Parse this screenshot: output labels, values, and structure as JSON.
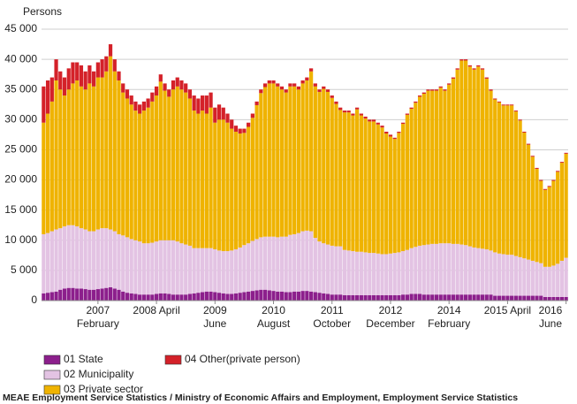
{
  "chart_data": {
    "type": "stacked_bar",
    "y_label": "Persons",
    "source": "MEAE Employment Service Statistics / Ministry of Economic Affairs and Employment, Employment Service Statistics",
    "categories": [
      null,
      null,
      null,
      null,
      null,
      null,
      null,
      null,
      null,
      null,
      null,
      null,
      null,
      [
        "2007",
        "February"
      ],
      null,
      null,
      null,
      null,
      null,
      null,
      null,
      null,
      null,
      null,
      null,
      null,
      null,
      "2008 April",
      null,
      null,
      null,
      null,
      null,
      null,
      null,
      null,
      null,
      null,
      null,
      null,
      null,
      [
        "2009",
        "June"
      ],
      null,
      null,
      null,
      null,
      null,
      null,
      null,
      null,
      null,
      null,
      null,
      null,
      null,
      [
        "2010",
        "August"
      ],
      null,
      null,
      null,
      null,
      null,
      null,
      null,
      null,
      null,
      null,
      null,
      null,
      null,
      [
        "2011",
        "October"
      ],
      null,
      null,
      null,
      null,
      null,
      null,
      null,
      null,
      null,
      null,
      null,
      null,
      null,
      [
        "2012",
        "December"
      ],
      null,
      null,
      null,
      null,
      null,
      null,
      null,
      null,
      null,
      null,
      null,
      null,
      null,
      [
        "2014",
        "February"
      ],
      null,
      null,
      null,
      null,
      null,
      null,
      null,
      null,
      null,
      null,
      null,
      null,
      null,
      "2015 April",
      null,
      null,
      null,
      null,
      null,
      null,
      null,
      null,
      null,
      null,
      null,
      null,
      null,
      [
        "2016",
        "June"
      ]
    ],
    "series": [
      {
        "name": "01 State",
        "color": "#8c1f8c",
        "values": [
          1200,
          1300,
          1400,
          1500,
          1800,
          2000,
          2100,
          2100,
          2000,
          2000,
          1900,
          1800,
          1800,
          1900,
          2000,
          2100,
          2200,
          2000,
          1800,
          1500,
          1300,
          1200,
          1100,
          1000,
          1000,
          1000,
          1000,
          1100,
          1200,
          1200,
          1100,
          1000,
          1000,
          1000,
          1000,
          1100,
          1200,
          1300,
          1400,
          1500,
          1500,
          1400,
          1300,
          1200,
          1100,
          1100,
          1200,
          1300,
          1400,
          1500,
          1600,
          1700,
          1800,
          1800,
          1700,
          1600,
          1500,
          1500,
          1400,
          1400,
          1500,
          1500,
          1600,
          1600,
          1500,
          1400,
          1300,
          1200,
          1100,
          1000,
          1000,
          1000,
          900,
          900,
          900,
          900,
          900,
          900,
          900,
          900,
          900,
          900,
          900,
          900,
          900,
          900,
          1000,
          1000,
          1100,
          1100,
          1100,
          1000,
          1000,
          1000,
          1000,
          1000,
          1000,
          1000,
          1000,
          1000,
          1000,
          1000,
          1000,
          1000,
          1000,
          1000,
          1000,
          1000,
          800,
          800,
          800,
          800,
          800,
          800,
          800,
          800,
          800,
          800,
          800,
          800,
          600,
          600,
          600,
          600,
          600,
          600
        ]
      },
      {
        "name": "02 Municipality",
        "color": "#e3c3e3",
        "values": [
          9800,
          9900,
          10100,
          10300,
          10200,
          10300,
          10400,
          10400,
          10300,
          10000,
          9900,
          9700,
          9700,
          9900,
          10000,
          9900,
          9600,
          9500,
          9200,
          9300,
          9200,
          9000,
          8900,
          8800,
          8500,
          8500,
          8600,
          8700,
          8800,
          8800,
          8900,
          9000,
          8800,
          8500,
          8300,
          8000,
          7500,
          7400,
          7300,
          7200,
          7200,
          7100,
          7000,
          7000,
          7100,
          7200,
          7300,
          7500,
          7800,
          8000,
          8300,
          8500,
          8700,
          8800,
          8900,
          9000,
          9000,
          9100,
          9200,
          9500,
          9500,
          9700,
          9900,
          10000,
          10000,
          9000,
          8500,
          8300,
          8200,
          8100,
          8000,
          8000,
          7500,
          7400,
          7300,
          7200,
          7200,
          7100,
          7000,
          7000,
          6900,
          6800,
          6800,
          6900,
          7000,
          7100,
          7200,
          7400,
          7600,
          7800,
          8000,
          8200,
          8300,
          8400,
          8400,
          8500,
          8500,
          8500,
          8400,
          8400,
          8300,
          8200,
          8000,
          7800,
          7700,
          7600,
          7500,
          7300,
          7200,
          7000,
          6900,
          6800,
          6800,
          6600,
          6400,
          6200,
          6000,
          5800,
          5600,
          5400,
          5000,
          5000,
          5200,
          5500,
          6000,
          6500
        ]
      },
      {
        "name": "03 Private sector",
        "color": "#efb300",
        "values": [
          18500,
          19800,
          21500,
          24700,
          23000,
          21700,
          22500,
          23500,
          24200,
          23500,
          23200,
          24500,
          24000,
          25200,
          25000,
          26000,
          28700,
          26500,
          25500,
          23700,
          23000,
          22300,
          21500,
          21200,
          22000,
          22500,
          23400,
          24200,
          26300,
          24800,
          23800,
          25000,
          25700,
          25500,
          25200,
          24400,
          22800,
          22300,
          22800,
          22300,
          23300,
          21000,
          21700,
          21800,
          21300,
          20200,
          19500,
          18900,
          18600,
          19300,
          20400,
          22200,
          23900,
          24800,
          25400,
          25400,
          25000,
          24400,
          23900,
          24600,
          24500,
          23800,
          24500,
          24900,
          26500,
          25100,
          24800,
          25600,
          25300,
          24500,
          23600,
          22600,
          22800,
          22900,
          22500,
          23600,
          22600,
          22200,
          21800,
          21800,
          21400,
          21000,
          20000,
          19400,
          18900,
          19800,
          21100,
          22400,
          23100,
          23900,
          24700,
          25100,
          25500,
          25400,
          25400,
          25800,
          25300,
          26300,
          27400,
          28900,
          30500,
          30600,
          29800,
          29500,
          30100,
          29700,
          28300,
          26500,
          25350,
          25050,
          24650,
          24750,
          24750,
          23950,
          22650,
          20850,
          19050,
          17250,
          15450,
          13650,
          12750,
          13250,
          14050,
          15250,
          16250,
          17250
        ]
      },
      {
        "name": "04 Other(private person)",
        "color": "#d42129",
        "values": [
          6000,
          5500,
          4000,
          3500,
          3000,
          3000,
          3500,
          3500,
          3000,
          3500,
          3000,
          3000,
          2500,
          2500,
          3000,
          2500,
          2000,
          2000,
          1500,
          1500,
          1500,
          1500,
          1500,
          1500,
          1500,
          1500,
          1500,
          1500,
          1200,
          1200,
          1200,
          1500,
          1500,
          1500,
          1500,
          1500,
          2500,
          2500,
          2500,
          3000,
          2500,
          2500,
          2500,
          2000,
          1500,
          1500,
          1000,
          800,
          700,
          700,
          700,
          600,
          600,
          600,
          500,
          500,
          500,
          500,
          500,
          500,
          500,
          500,
          500,
          500,
          500,
          500,
          400,
          400,
          400,
          400,
          400,
          400,
          300,
          300,
          300,
          300,
          300,
          300,
          300,
          300,
          300,
          300,
          300,
          300,
          200,
          200,
          200,
          200,
          200,
          200,
          200,
          200,
          200,
          200,
          200,
          200,
          200,
          200,
          200,
          200,
          200,
          200,
          200,
          200,
          200,
          200,
          200,
          200,
          150,
          150,
          150,
          150,
          150,
          150,
          150,
          150,
          150,
          150,
          150,
          150,
          150,
          150,
          150,
          150,
          150,
          150
        ]
      }
    ],
    "ylim": [
      0,
      45000
    ],
    "yticks": [
      0,
      {
        "value": 5000,
        "label": "5 000"
      },
      {
        "value": 10000,
        "label": "10 000"
      },
      {
        "value": 15000,
        "label": "15 000"
      },
      {
        "value": 20000,
        "label": "20 000"
      },
      {
        "value": 25000,
        "label": "25 000"
      },
      {
        "value": 30000,
        "label": "30 000"
      },
      {
        "value": 35000,
        "label": "35 000"
      },
      {
        "value": 40000,
        "label": "40 000"
      },
      {
        "value": 45000,
        "label": "45 000"
      }
    ],
    "grid": true
  }
}
